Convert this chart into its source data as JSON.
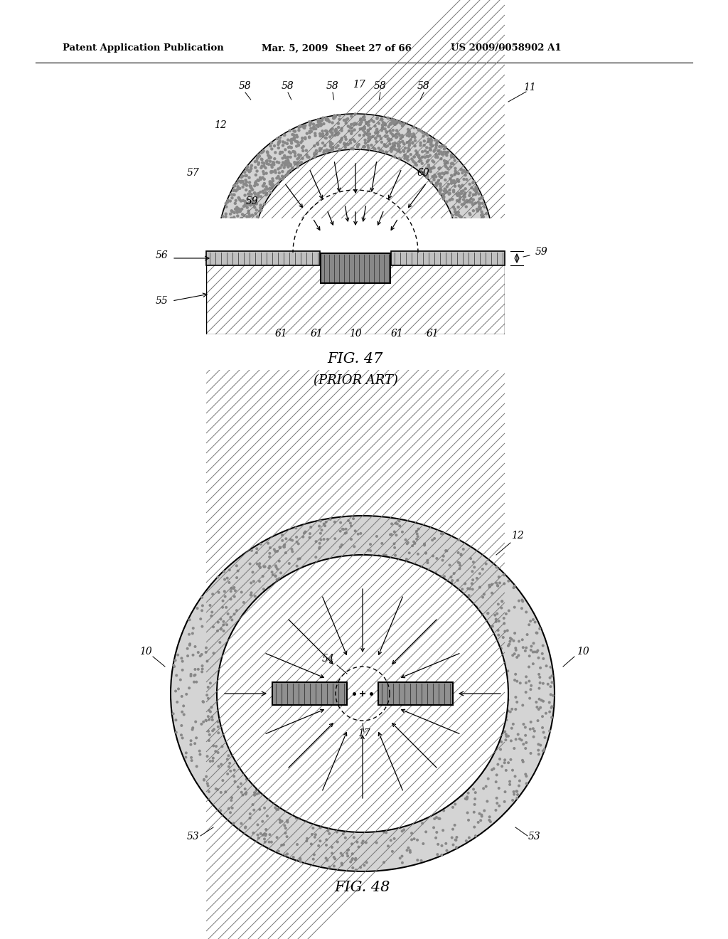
{
  "bg_color": "#ffffff",
  "header_text": "Patent Application Publication",
  "header_date": "Mar. 5, 2009",
  "header_sheet": "Sheet 27 of 66",
  "header_patent": "US 2009/0058902 A1",
  "fig1_title": "FIG. 47",
  "fig1_subtitle": "(PRIOR ART)",
  "fig2_title": "FIG. 48",
  "stipple_color": "#aaaaaa",
  "stipple_color2": "#999999",
  "hatch_plate_color": "#b8b8b8",
  "heater_color": "#888888",
  "substrate_hatch_color": "#777777"
}
